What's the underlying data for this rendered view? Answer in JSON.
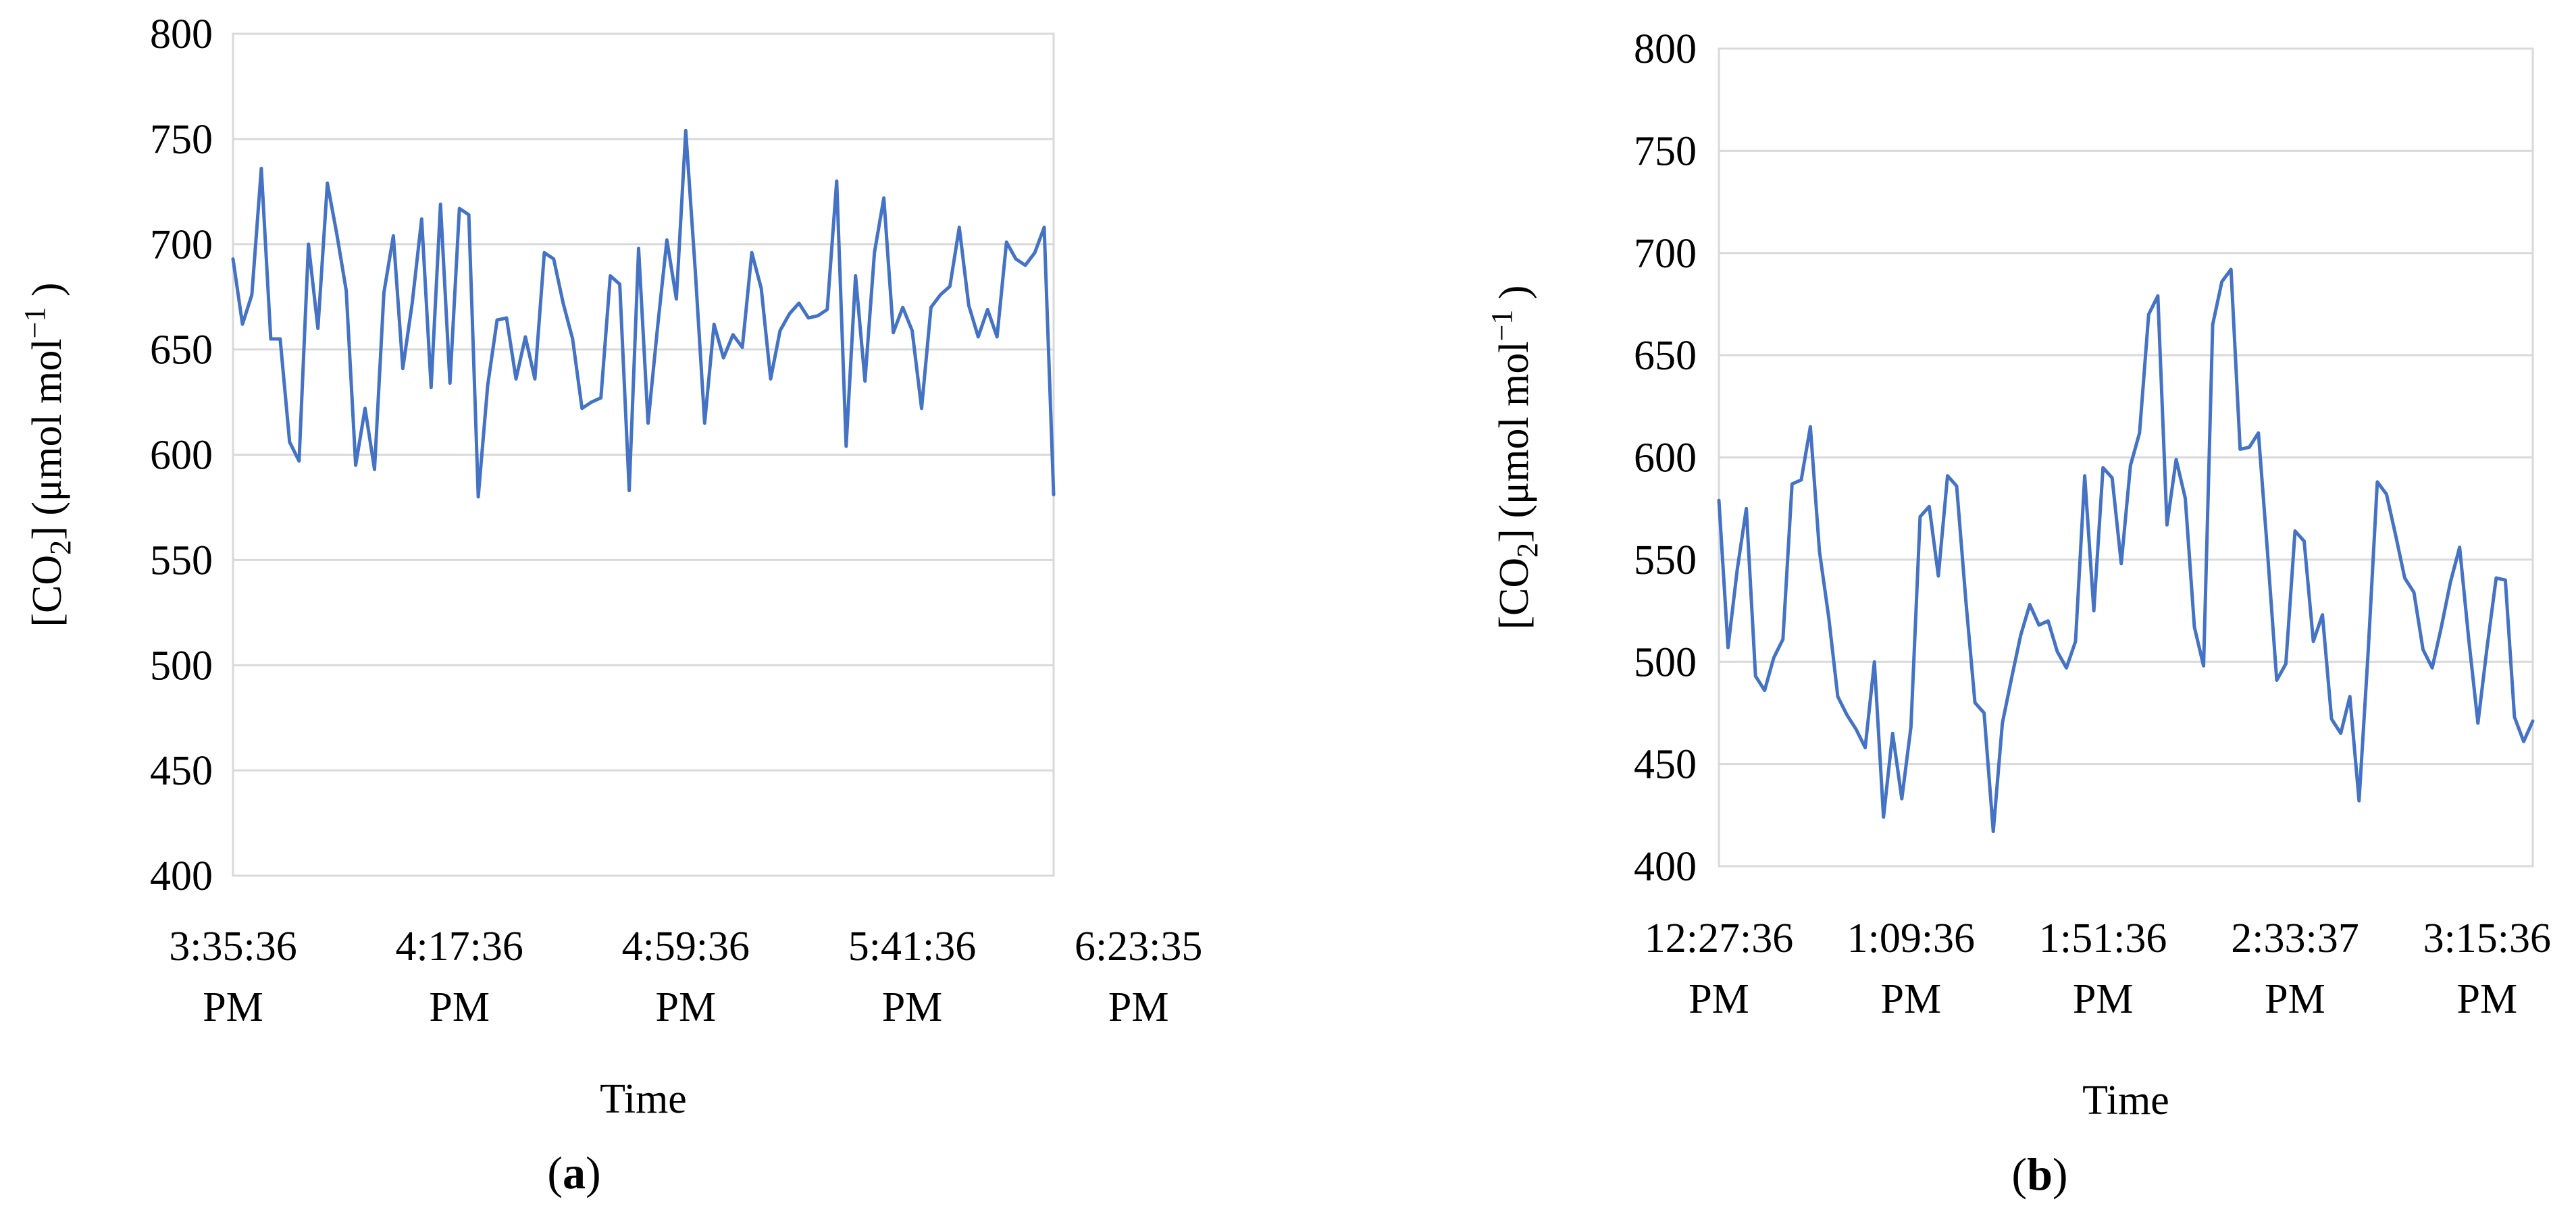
{
  "colors": {
    "series": "#4472C4",
    "grid": "#D9D9D9"
  },
  "chart_data": [
    {
      "type": "line",
      "panel_label": "a",
      "xlabel": "Time",
      "ylabel": "[CO2] (μmol mol−1 )",
      "ylim": [
        400,
        800
      ],
      "ytick_step": 50,
      "grid": true,
      "x_ticks": [
        {
          "line1": "3:35:36",
          "line2": "PM",
          "index": 0
        },
        {
          "line1": "4:17:36",
          "line2": "PM",
          "index": 24
        },
        {
          "line1": "4:59:36",
          "line2": "PM",
          "index": 48
        },
        {
          "line1": "5:41:36",
          "line2": "PM",
          "index": 72
        },
        {
          "line1": "6:23:35",
          "line2": "PM",
          "index": 96
        }
      ],
      "series": [
        {
          "values": [
            693,
            662,
            676,
            736,
            655,
            655,
            606,
            597,
            700,
            660,
            729,
            705,
            678,
            595,
            622,
            593,
            677,
            704,
            641,
            672,
            712,
            632,
            719,
            634,
            717,
            714,
            580,
            633,
            664,
            665,
            636,
            656,
            636,
            696,
            693,
            672,
            655,
            622,
            625,
            627,
            685,
            681,
            583,
            698,
            615,
            660,
            702,
            674,
            754,
            688,
            615,
            662,
            646,
            657,
            651,
            696,
            679,
            636,
            659,
            667,
            672,
            665,
            666,
            669,
            730,
            604,
            685,
            635,
            696,
            722,
            658,
            670,
            659,
            622,
            670,
            676,
            680,
            708,
            671,
            656,
            669,
            656,
            701,
            693,
            690,
            696,
            708,
            581
          ]
        }
      ]
    },
    {
      "type": "line",
      "panel_label": "b",
      "xlabel": "Time",
      "ylabel": "[CO2] (μmol mol−1 )",
      "ylim": [
        400,
        800
      ],
      "ytick_step": 50,
      "grid": true,
      "x_ticks": [
        {
          "line1": "12:27:36",
          "line2": "PM",
          "index": 0
        },
        {
          "line1": "1:09:36",
          "line2": "PM",
          "index": 21
        },
        {
          "line1": "1:51:36",
          "line2": "PM",
          "index": 42
        },
        {
          "line1": "2:33:37",
          "line2": "PM",
          "index": 63
        },
        {
          "line1": "3:15:36",
          "line2": "PM",
          "index": 84
        }
      ],
      "series": [
        {
          "values": [
            579,
            507,
            545,
            575,
            493,
            486,
            502,
            511,
            587,
            589,
            615,
            554,
            522,
            483,
            474,
            467,
            458,
            500,
            424,
            465,
            433,
            468,
            571,
            576,
            542,
            591,
            586,
            530,
            480,
            475,
            417,
            470,
            492,
            513,
            528,
            518,
            520,
            505,
            497,
            510,
            591,
            525,
            595,
            590,
            548,
            596,
            612,
            670,
            679,
            567,
            599,
            580,
            517,
            498,
            665,
            686,
            692,
            604,
            605,
            612,
            553,
            491,
            499,
            564,
            559,
            510,
            523,
            472,
            465,
            483,
            432,
            505,
            588,
            582,
            562,
            541,
            534,
            506,
            497,
            517,
            539,
            556,
            511,
            470,
            507,
            541,
            540,
            473,
            461,
            471
          ]
        }
      ]
    }
  ]
}
